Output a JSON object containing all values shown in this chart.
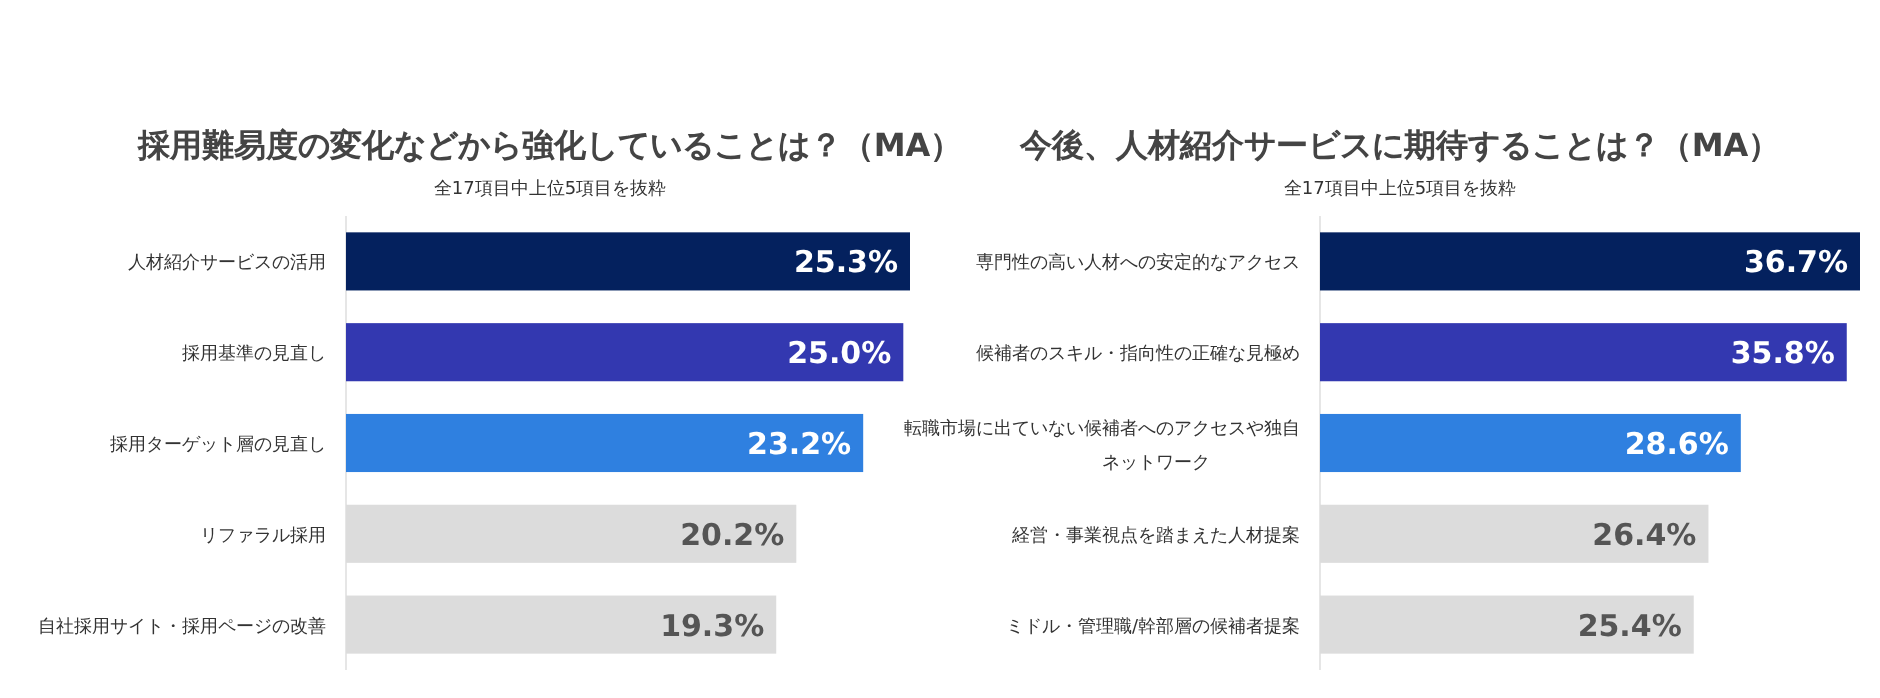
{
  "chart_data": [
    {
      "type": "bar",
      "orientation": "horizontal",
      "title": "採用難易度の変化などから強化していることは？（MA）",
      "subtitle": "全17項目中上位5項目を抜粋",
      "categories": [
        "人材紹介サービスの活用",
        "採用基準の見直し",
        "採用ターゲット層の見直し",
        "リファラル採用",
        "自社採用サイト・採用ページの改善"
      ],
      "values": [
        25.3,
        25.0,
        23.2,
        20.2,
        19.3
      ],
      "value_labels": [
        "25.3%",
        "25.0%",
        "23.2%",
        "20.2%",
        "19.3%"
      ],
      "colors": [
        "#04215e",
        "#3338b0",
        "#2f80e0",
        "#dcdcdc",
        "#dcdcdc"
      ]
    },
    {
      "type": "bar",
      "orientation": "horizontal",
      "title": "今後、人材紹介サービスに期待することは？（MA）",
      "subtitle": "全17項目中上位5項目を抜粋",
      "categories": [
        "専門性の高い人材への安定的なアクセス",
        "候補者のスキル・指向性の正確な見極め",
        "転職市場に出ていない候補者へのアクセスや独自ネットワーク",
        "経営・事業視点を踏まえた人材提案",
        "ミドル・管理職/幹部層の候補者提案"
      ],
      "values": [
        36.7,
        35.8,
        28.6,
        26.4,
        25.4
      ],
      "value_labels": [
        "36.7%",
        "35.8%",
        "28.6%",
        "26.4%",
        "25.4%"
      ],
      "colors": [
        "#04215e",
        "#3338b0",
        "#2f80e0",
        "#dcdcdc",
        "#dcdcdc"
      ]
    }
  ]
}
